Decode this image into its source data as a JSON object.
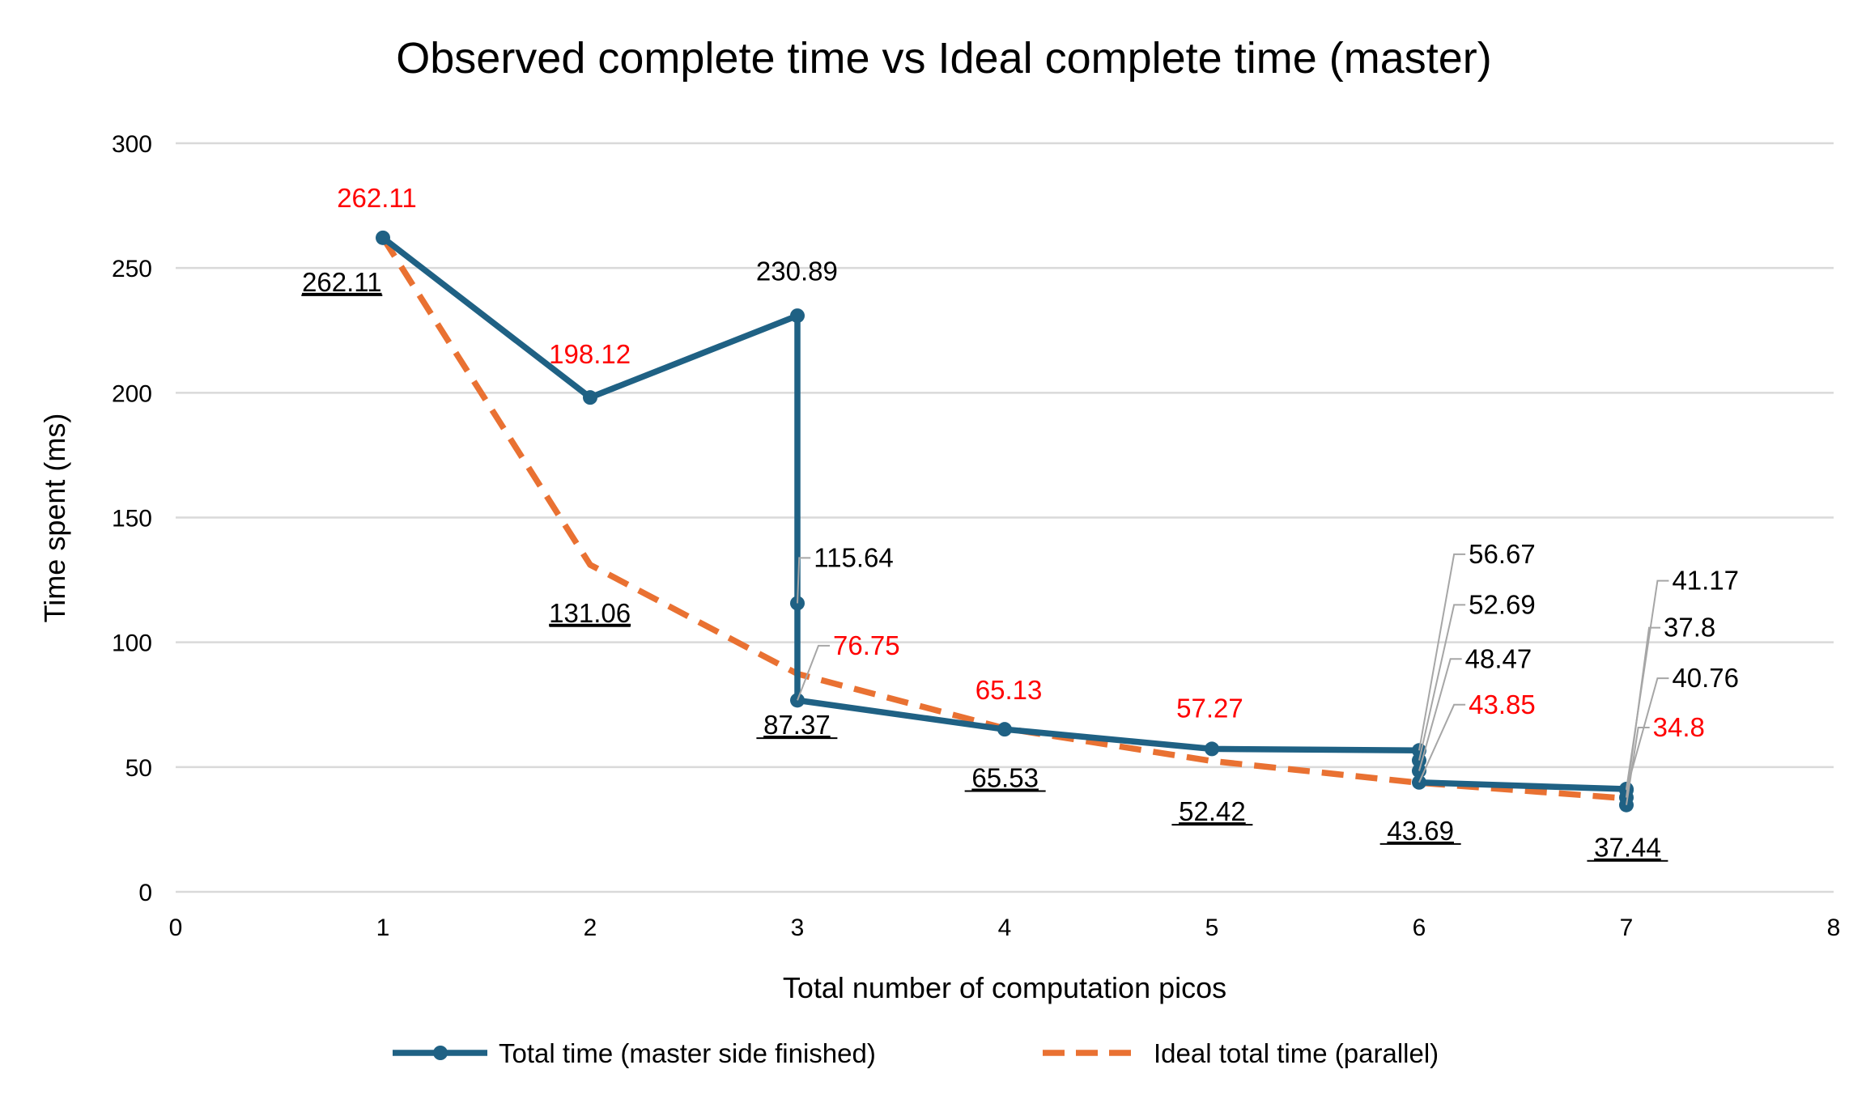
{
  "chart_data": {
    "type": "line",
    "title": "Observed complete time vs Ideal complete time (master)",
    "xlabel": "Total number of computation picos",
    "ylabel": "Time spent (ms)",
    "xlim": [
      0,
      8
    ],
    "ylim": [
      0,
      300
    ],
    "x_ticks": [
      0,
      1,
      2,
      3,
      4,
      5,
      6,
      7,
      8
    ],
    "y_ticks": [
      0,
      50,
      100,
      150,
      200,
      250,
      300
    ],
    "grid": "horizontal",
    "legend_position": "bottom",
    "series": [
      {
        "name": "Total time (master side finished)",
        "color": "#1F6184",
        "style": "solid-with-markers",
        "x": [
          1,
          2,
          3,
          3,
          3,
          4,
          5,
          6,
          6,
          6,
          6,
          7,
          7,
          7,
          7
        ],
        "y": [
          262.11,
          198.12,
          230.89,
          115.64,
          76.75,
          65.13,
          57.27,
          56.67,
          52.69,
          48.47,
          43.85,
          41.17,
          37.8,
          40.76,
          34.8
        ],
        "labels": [
          "262.11",
          "198.12",
          "230.89",
          "115.64",
          "76.75",
          "65.13",
          "57.27",
          "56.67",
          "52.69",
          "48.47",
          "43.85",
          "41.17",
          "37.8",
          "40.76",
          "34.8"
        ],
        "label_colors": [
          "#FF0000",
          "#FF0000",
          "#000000",
          "#000000",
          "#FF0000",
          "#FF0000",
          "#FF0000",
          "#000000",
          "#000000",
          "#000000",
          "#FF0000",
          "#000000",
          "#000000",
          "#000000",
          "#FF0000"
        ]
      },
      {
        "name": "Ideal total time (parallel)",
        "color": "#E97132",
        "style": "dashed",
        "x": [
          1,
          2,
          3,
          4,
          5,
          6,
          7
        ],
        "y": [
          262.11,
          131.06,
          87.37,
          65.53,
          52.42,
          43.69,
          37.44
        ],
        "labels": [
          "262.11",
          "131.06",
          "87.37",
          "65.53",
          "52.42",
          "43.69",
          "37.44"
        ],
        "label_colors": [
          "#000000",
          "#000000",
          "#000000",
          "#000000",
          "#000000",
          "#000000",
          "#000000"
        ]
      }
    ]
  }
}
